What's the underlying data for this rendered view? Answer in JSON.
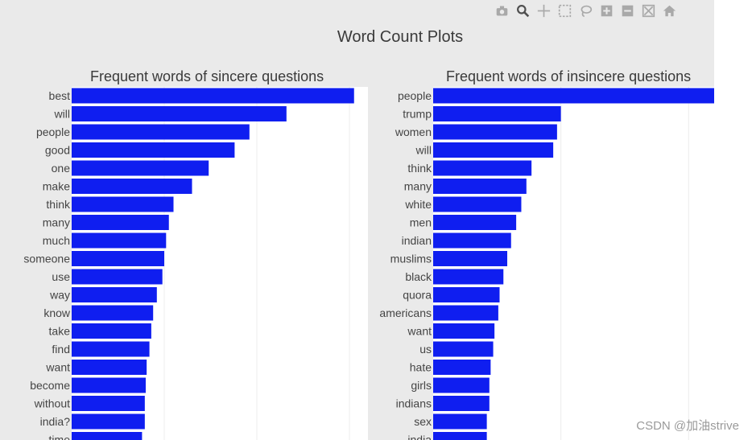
{
  "title": "Word Count Plots",
  "toolbar": {
    "buttons": [
      {
        "icon": "camera-icon",
        "name": "toolbar-camera-button"
      },
      {
        "icon": "zoom-icon",
        "name": "toolbar-zoom-button"
      },
      {
        "icon": "pan-icon",
        "name": "toolbar-pan-button"
      },
      {
        "icon": "box-select-icon",
        "name": "toolbar-box-select-button"
      },
      {
        "icon": "lasso-icon",
        "name": "toolbar-lasso-button"
      },
      {
        "icon": "zoom-in-icon",
        "name": "toolbar-zoom-in-button"
      },
      {
        "icon": "zoom-out-icon",
        "name": "toolbar-zoom-out-button"
      },
      {
        "icon": "autoscale-icon",
        "name": "toolbar-autoscale-button"
      },
      {
        "icon": "home-icon",
        "name": "toolbar-reset-button"
      }
    ]
  },
  "watermark": "CSDN @加油strive",
  "colors": {
    "bar": "#0f1ef0",
    "panel": "#ffffff",
    "background": "#eaeaea",
    "grid": "#ececec"
  },
  "chart_data": [
    {
      "type": "bar",
      "orientation": "horizontal",
      "title": "Frequent words of sincere questions",
      "categories": [
        "best",
        "will",
        "people",
        "good",
        "one",
        "make",
        "think",
        "many",
        "much",
        "someone",
        "use",
        "way",
        "know",
        "take",
        "find",
        "want",
        "become",
        "without",
        "india?",
        "time"
      ],
      "values": [
        30.5,
        23.2,
        19.2,
        17.6,
        14.8,
        13.0,
        11.0,
        10.5,
        10.2,
        10.0,
        9.8,
        9.2,
        8.8,
        8.6,
        8.4,
        8.1,
        8.0,
        7.9,
        7.9,
        7.6
      ],
      "xlim": [
        0,
        32
      ],
      "gridlines": [
        10,
        20,
        30
      ],
      "grid": true
    },
    {
      "type": "bar",
      "orientation": "horizontal",
      "title": "Frequent words of insincere questions",
      "categories": [
        "people",
        "trump",
        "women",
        "will",
        "think",
        "many",
        "white",
        "men",
        "indian",
        "muslims",
        "black",
        "quora",
        "americans",
        "want",
        "us",
        "hate",
        "girls",
        "indians",
        "sex",
        "india"
      ],
      "values": [
        2300,
        1000,
        970,
        940,
        770,
        730,
        690,
        650,
        610,
        580,
        550,
        520,
        510,
        480,
        470,
        450,
        440,
        440,
        420,
        420
      ],
      "xlim": [
        0,
        2200
      ],
      "gridlines": [
        1000,
        2000
      ],
      "grid": true
    }
  ]
}
